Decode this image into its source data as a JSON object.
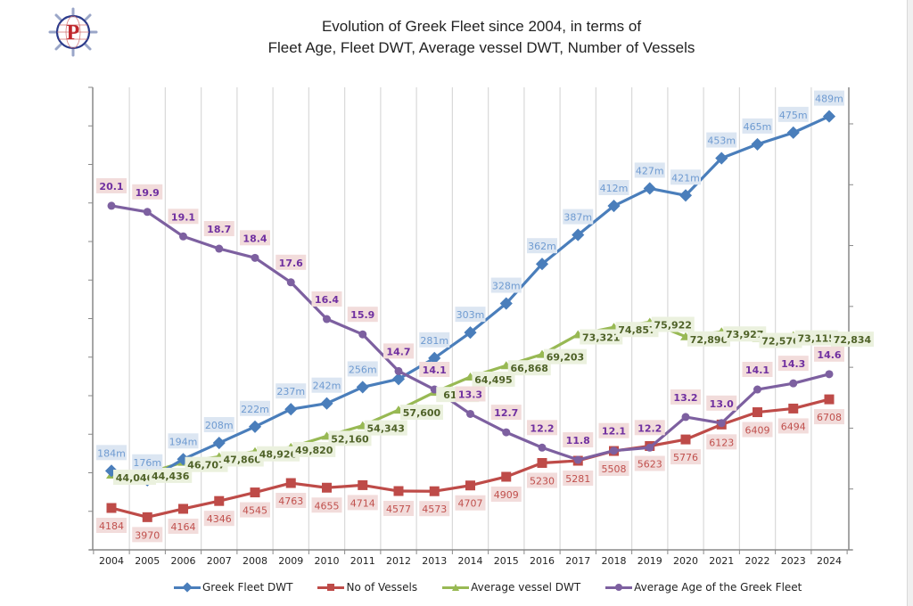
{
  "title": {
    "line1": "Evolution of Greek Fleet since 2004, in terms of",
    "line2": "Fleet Age, Fleet DWT, Average vessel DWT, Number of Vessels"
  },
  "logo": {
    "letter": "P",
    "icon": "ship-wheel-globe-logo"
  },
  "colors": {
    "dwt": "#4a7ebb",
    "vessels": "#be4b48",
    "avg_dwt": "#98b954",
    "age": "#7d60a0",
    "dwt_label_bg": "#dce6f2",
    "vessels_label_bg": "#f2dcdb",
    "avg_dwt_label_bg": "#ebf1de",
    "age_label_bg": "#f2dcdb",
    "dwt_label_text": "#6f9bd1",
    "vessels_label_text": "#c0504d",
    "avg_dwt_label_text": "#4f6228",
    "age_label_text": "#7030a0"
  },
  "chart_data": {
    "type": "line",
    "title": "Evolution of Greek Fleet since 2004, in terms of Fleet Age, Fleet DWT, Average vessel DWT, Number of Vessels",
    "xlabel": "",
    "ylabel": "",
    "categories": [
      "2004",
      "2005",
      "2006",
      "2007",
      "2008",
      "2009",
      "2010",
      "2011",
      "2012",
      "2013",
      "2014",
      "2015",
      "2016",
      "2017",
      "2018",
      "2019",
      "2020",
      "2021",
      "2022",
      "2023",
      "2024"
    ],
    "grid": "vertical",
    "legend": "bottom",
    "axis_tick_labels_shown": false,
    "series": [
      {
        "key": "dwt",
        "name": "Greek Fleet DWT",
        "marker": "diamond",
        "unit": "million dwt",
        "values": [
          184,
          176,
          194,
          208,
          222,
          237,
          242,
          256,
          263,
          281,
          303,
          328,
          362,
          387,
          412,
          427,
          421,
          453,
          465,
          475,
          489
        ],
        "labels": [
          "184m",
          "176m",
          "194m",
          "208m",
          "222m",
          "237m",
          "242m",
          "256m",
          "",
          "281m",
          "303m",
          "328m",
          "362m",
          "387m",
          "412m",
          "427m",
          "421m",
          "453m",
          "465m",
          "475m",
          "489m"
        ],
        "yrange": [
          116,
          514
        ]
      },
      {
        "key": "vessels",
        "name": "No of Vessels",
        "marker": "square",
        "values": [
          4184,
          3970,
          4164,
          4346,
          4545,
          4763,
          4655,
          4714,
          4577,
          4573,
          4707,
          4909,
          5230,
          5281,
          5508,
          5623,
          5776,
          6123,
          6409,
          6494,
          6708
        ],
        "labels": [
          "4184",
          "3970",
          "4164",
          "4346",
          "4545",
          "4763",
          "4655",
          "4714",
          "4577",
          "4573",
          "4707",
          "4909",
          "5230",
          "5281",
          "5508",
          "5623",
          "5776",
          "6123",
          "6409",
          "6494",
          "6708"
        ],
        "yrange": [
          3211,
          13956
        ]
      },
      {
        "key": "avg_dwt",
        "name": "Average vessel DWT",
        "marker": "triangle",
        "values": [
          44046,
          44436,
          46707,
          47860,
          48926,
          49820,
          52160,
          54343,
          57600,
          61300,
          64495,
          66868,
          69203,
          73321,
          74857,
          75922,
          72896,
          73927,
          72576,
          73115,
          72834
        ],
        "labels": [
          "44,046",
          "44,436",
          "46,707",
          "47,860",
          "48,926",
          "49,820",
          "52,160",
          "54,343",
          "57,600",
          "61,...",
          "64,495",
          "66,868",
          "69,203",
          "73,321",
          "74,857",
          "75,922",
          "72,896",
          "73,927",
          "72,576",
          "73,115",
          "72,834"
        ],
        "yrange": [
          28433,
          124901
        ]
      },
      {
        "key": "age",
        "name": "Average Age of the Greek Fleet",
        "marker": "circle",
        "unit": "years",
        "values": [
          20.1,
          19.9,
          19.1,
          18.7,
          18.4,
          17.6,
          16.4,
          15.9,
          14.7,
          14.1,
          13.3,
          12.7,
          12.2,
          11.8,
          12.1,
          12.2,
          13.2,
          13.0,
          14.1,
          14.3,
          14.6
        ],
        "labels": [
          "20.1",
          "19.9",
          "19.1",
          "18.7",
          "18.4",
          "17.6",
          "16.4",
          "15.9",
          "14.7",
          "14.1",
          "13.3",
          "12.7",
          "12.2",
          "11.8",
          "12.1",
          "12.2",
          "13.2",
          "13.0",
          "14.1",
          "14.3",
          "14.6"
        ],
        "yrange": [
          8.86,
          23.97
        ]
      }
    ]
  }
}
